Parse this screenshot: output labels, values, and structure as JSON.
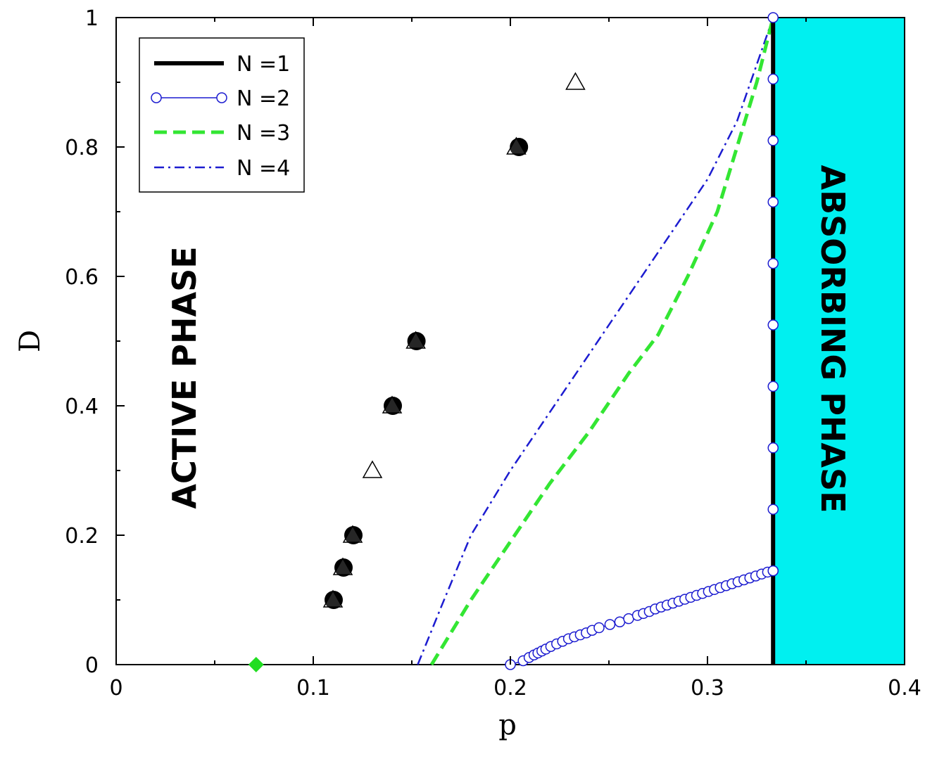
{
  "chart_data": {
    "type": "line",
    "xlabel": "p",
    "ylabel": "D",
    "xlim": [
      0,
      0.4
    ],
    "ylim": [
      0,
      1
    ],
    "x_ticks": [
      "0",
      "0.1",
      "0.2",
      "0.3",
      "0.4"
    ],
    "y_ticks": [
      "0",
      "0.2",
      "0.4",
      "0.6",
      "0.8",
      "1"
    ],
    "grid": false,
    "legend_position": "top-left",
    "colors": {
      "n1": "#000000",
      "n2": "#1c1cd0",
      "n3": "#33e633",
      "n4": "#1c1cd0",
      "absorbing_region": "#00f0f0",
      "diamond": "#22dd22"
    },
    "legend": [
      "N =1",
      "N =2",
      "N =3",
      "N =4"
    ],
    "series": [
      {
        "name": "N =1",
        "style": "solid-thick",
        "x": [
          0.3333,
          0.3333
        ],
        "y": [
          0,
          1
        ]
      },
      {
        "name": "N =2",
        "style": "line-open-circles",
        "x": [
          0.2,
          0.2065,
          0.2095,
          0.212,
          0.214,
          0.216,
          0.218,
          0.2205,
          0.2235,
          0.2265,
          0.2295,
          0.2325,
          0.2355,
          0.2385,
          0.2415,
          0.245,
          0.2505,
          0.2555,
          0.26,
          0.2645,
          0.2675,
          0.2705,
          0.2735,
          0.2765,
          0.2795,
          0.2825,
          0.2855,
          0.2885,
          0.2915,
          0.2945,
          0.2975,
          0.3005,
          0.3035,
          0.3065,
          0.3095,
          0.3125,
          0.3155,
          0.3185,
          0.3215,
          0.3245,
          0.3275,
          0.3305,
          0.3333
        ],
        "y": [
          0,
          0.006,
          0.011,
          0.015,
          0.018,
          0.021,
          0.024,
          0.028,
          0.032,
          0.036,
          0.04,
          0.043,
          0.046,
          0.049,
          0.053,
          0.057,
          0.062,
          0.066,
          0.071,
          0.076,
          0.079,
          0.082,
          0.086,
          0.089,
          0.092,
          0.095,
          0.098,
          0.101,
          0.104,
          0.107,
          0.11,
          0.113,
          0.116,
          0.119,
          0.122,
          0.125,
          0.128,
          0.131,
          0.134,
          0.137,
          0.14,
          0.143,
          0.145
        ]
      },
      {
        "name": "N =2 (p = 1/3)",
        "style": "open-circles",
        "x": [
          0.3333,
          0.3333,
          0.3333,
          0.3333,
          0.3333,
          0.3333,
          0.3333,
          0.3333,
          0.3333,
          0.3333
        ],
        "y": [
          0.24,
          0.335,
          0.43,
          0.525,
          0.62,
          0.715,
          0.81,
          0.905,
          1.0,
          0.145
        ]
      },
      {
        "name": "N =3",
        "style": "dashed",
        "x": [
          0.16,
          0.18,
          0.2,
          0.22,
          0.24,
          0.26,
          0.275,
          0.29,
          0.305,
          0.315,
          0.325,
          0.3333
        ],
        "y": [
          0,
          0.1,
          0.19,
          0.28,
          0.36,
          0.45,
          0.51,
          0.6,
          0.7,
          0.8,
          0.9,
          1.0
        ]
      },
      {
        "name": "N =4",
        "style": "dash-dot",
        "x": [
          0.153,
          0.165,
          0.18,
          0.2,
          0.22,
          0.24,
          0.26,
          0.28,
          0.3,
          0.315,
          0.3333
        ],
        "y": [
          0,
          0.09,
          0.2,
          0.3,
          0.39,
          0.48,
          0.57,
          0.66,
          0.75,
          0.84,
          1.0
        ]
      },
      {
        "name": "filled circles",
        "style": "filled-circles",
        "x": [
          0.11,
          0.115,
          0.12,
          0.14,
          0.152,
          0.204
        ],
        "y": [
          0.1,
          0.15,
          0.2,
          0.4,
          0.5,
          0.8
        ]
      },
      {
        "name": "open triangles",
        "style": "open-triangles",
        "x": [
          0.11,
          0.115,
          0.12,
          0.13,
          0.14,
          0.152,
          0.203,
          0.233
        ],
        "y": [
          0.1,
          0.15,
          0.2,
          0.3,
          0.4,
          0.5,
          0.8,
          0.9
        ]
      },
      {
        "name": "diamond",
        "style": "filled-diamond",
        "x": [
          0.071
        ],
        "y": [
          0
        ]
      }
    ],
    "annotations": [
      "ACTIVE PHASE",
      "ABSORBING PHASE"
    ]
  }
}
